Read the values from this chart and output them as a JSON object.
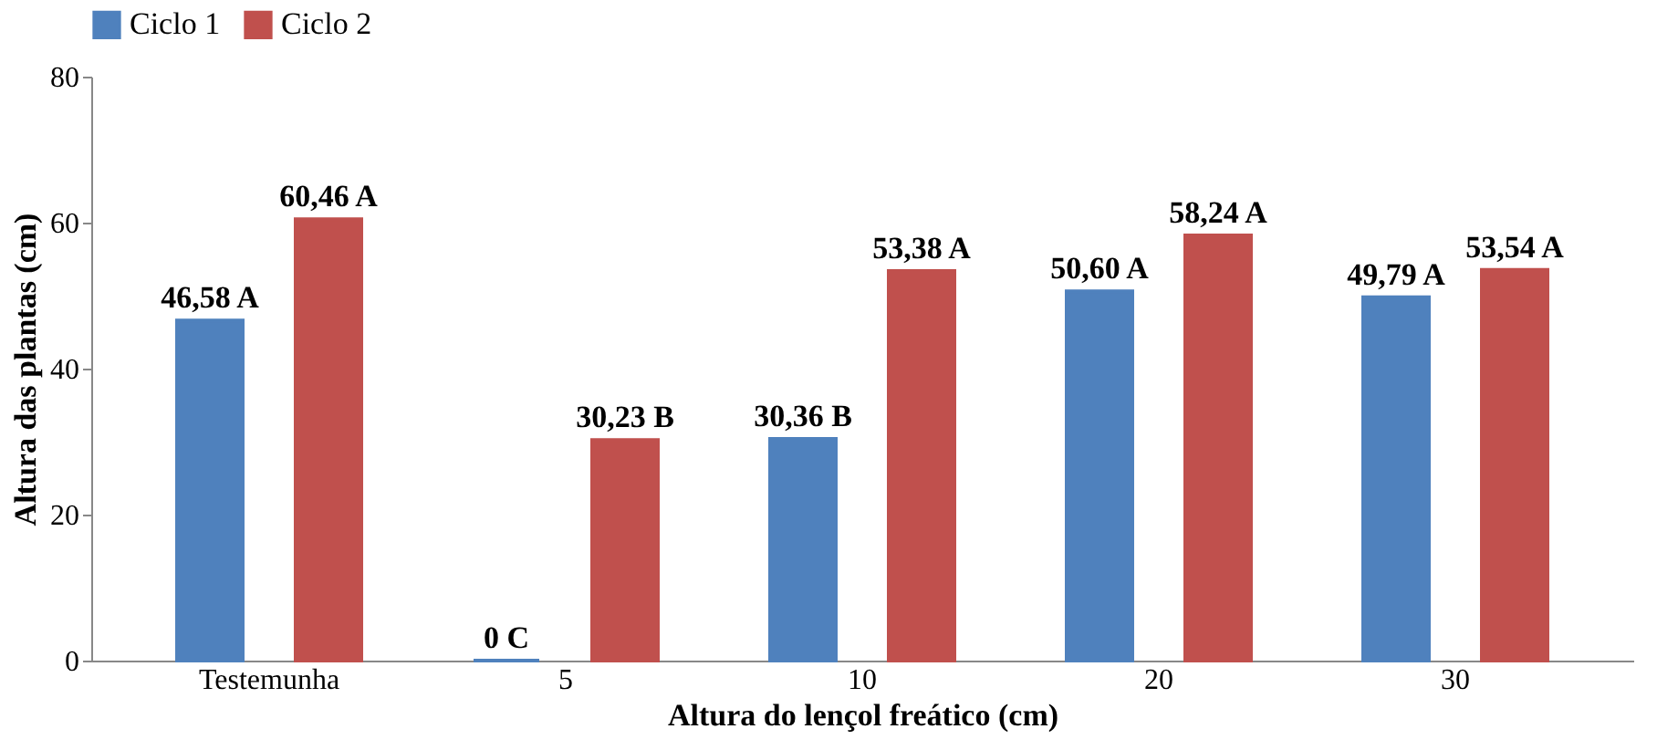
{
  "chart_data": {
    "type": "bar",
    "xlabel": "Altura do lençol freático (cm)",
    "ylabel": "Altura das plantas (cm)",
    "categories": [
      "Testemunha",
      "5",
      "10",
      "20",
      "30"
    ],
    "series": [
      {
        "name": "Ciclo 1",
        "color": "#4f81bd",
        "values": [
          46.58,
          0,
          30.36,
          50.6,
          49.79
        ],
        "value_labels": [
          "46,58 A",
          "0 C",
          "30,36 B",
          "50,60 A",
          "49,79 A"
        ]
      },
      {
        "name": "Ciclo 2",
        "color": "#c0504d",
        "values": [
          60.46,
          30.23,
          53.38,
          58.24,
          53.54
        ],
        "value_labels": [
          "60,46 A",
          "30,23 B",
          "53,38 A",
          "58,24 A",
          "53,54 A"
        ]
      }
    ],
    "ylim": [
      0,
      80
    ],
    "yticks": [
      0,
      20,
      40,
      60,
      80
    ],
    "grid": false,
    "legend": "top"
  }
}
